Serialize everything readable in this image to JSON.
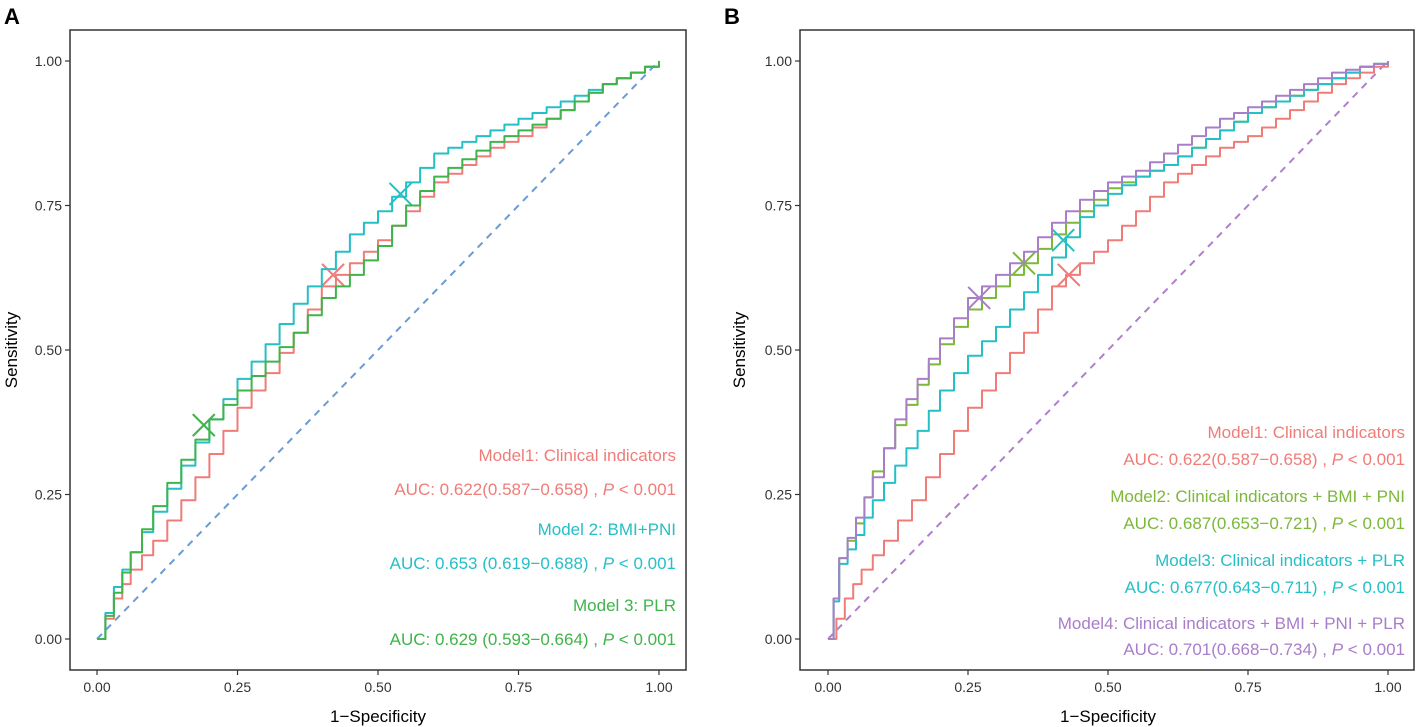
{
  "chart_data": [
    {
      "type": "line",
      "panel": "A",
      "xlabel": "1−Specificity",
      "ylabel": "Sensitivity",
      "xlim": [
        0,
        1
      ],
      "ylim": [
        0,
        1
      ],
      "xticks": [
        "0.00",
        "0.25",
        "0.50",
        "0.75",
        "1.00"
      ],
      "yticks": [
        "0.00",
        "0.25",
        "0.50",
        "0.75",
        "1.00"
      ],
      "reference_color": "#6a9bd6",
      "series": [
        {
          "name": "Model1: Clinical indicators",
          "auc": "AUC:  0.622(0.587−0.658) ,",
          "p": "< 0.001",
          "color": "#f07c78",
          "cutoff": [
            0.42,
            0.63
          ],
          "x": [
            0,
            0.03,
            0.06,
            0.1,
            0.15,
            0.2,
            0.25,
            0.3,
            0.35,
            0.4,
            0.45,
            0.5,
            0.55,
            0.6,
            0.65,
            0.7,
            0.75,
            0.8,
            0.85,
            0.9,
            0.95,
            1
          ],
          "y": [
            0,
            0.07,
            0.12,
            0.17,
            0.24,
            0.32,
            0.4,
            0.46,
            0.53,
            0.61,
            0.65,
            0.69,
            0.74,
            0.79,
            0.82,
            0.85,
            0.87,
            0.9,
            0.93,
            0.96,
            0.98,
            1
          ]
        },
        {
          "name": "Model 2: BMI+PNI",
          "auc": "AUC:  0.653 (0.619−0.688) ,",
          "p": "< 0.001",
          "color": "#25bfc6",
          "cutoff": [
            0.54,
            0.77
          ],
          "x": [
            0,
            0.03,
            0.06,
            0.1,
            0.15,
            0.2,
            0.25,
            0.3,
            0.35,
            0.4,
            0.45,
            0.5,
            0.55,
            0.6,
            0.65,
            0.7,
            0.75,
            0.8,
            0.85,
            0.9,
            0.95,
            1
          ],
          "y": [
            0,
            0.09,
            0.15,
            0.22,
            0.3,
            0.38,
            0.45,
            0.51,
            0.58,
            0.64,
            0.7,
            0.74,
            0.79,
            0.84,
            0.86,
            0.88,
            0.9,
            0.92,
            0.94,
            0.96,
            0.98,
            1
          ]
        },
        {
          "name": "Model 3: PLR",
          "auc": "AUC:  0.629 (0.593−0.664) ,",
          "p": "< 0.001",
          "color": "#3fb44a",
          "cutoff": [
            0.19,
            0.37
          ],
          "x": [
            0,
            0.03,
            0.06,
            0.1,
            0.15,
            0.2,
            0.25,
            0.3,
            0.35,
            0.4,
            0.45,
            0.5,
            0.55,
            0.6,
            0.65,
            0.7,
            0.75,
            0.8,
            0.85,
            0.9,
            0.95,
            1
          ],
          "y": [
            0,
            0.08,
            0.15,
            0.23,
            0.31,
            0.38,
            0.43,
            0.48,
            0.53,
            0.59,
            0.63,
            0.68,
            0.75,
            0.8,
            0.83,
            0.86,
            0.88,
            0.9,
            0.93,
            0.96,
            0.98,
            1
          ]
        }
      ]
    },
    {
      "type": "line",
      "panel": "B",
      "xlabel": "1−Specificity",
      "ylabel": "Sensitivity",
      "xlim": [
        0,
        1
      ],
      "ylim": [
        0,
        1
      ],
      "xticks": [
        "0.00",
        "0.25",
        "0.50",
        "0.75",
        "1.00"
      ],
      "yticks": [
        "0.00",
        "0.25",
        "0.50",
        "0.75",
        "1.00"
      ],
      "reference_color": "#b07fcc",
      "series": [
        {
          "name": "Model1: Clinical indicators",
          "auc": "AUC:  0.622(0.587−0.658) ,",
          "p": "< 0.001",
          "color": "#f07c78",
          "cutoff": [
            0.43,
            0.63
          ],
          "x": [
            0,
            0.03,
            0.06,
            0.1,
            0.15,
            0.2,
            0.25,
            0.3,
            0.35,
            0.4,
            0.45,
            0.5,
            0.55,
            0.6,
            0.65,
            0.7,
            0.75,
            0.8,
            0.85,
            0.9,
            0.95,
            1
          ],
          "y": [
            0,
            0.07,
            0.12,
            0.17,
            0.24,
            0.32,
            0.4,
            0.46,
            0.53,
            0.61,
            0.65,
            0.69,
            0.74,
            0.79,
            0.82,
            0.85,
            0.87,
            0.9,
            0.93,
            0.96,
            0.98,
            1
          ]
        },
        {
          "name": "Model2: Clinical indicators + BMI + PNI",
          "auc": "AUC:  0.687(0.653−0.721) ,",
          "p": "< 0.001",
          "color": "#7cb83a",
          "cutoff": [
            0.35,
            0.65
          ],
          "x": [
            0,
            0.02,
            0.05,
            0.08,
            0.12,
            0.16,
            0.2,
            0.25,
            0.3,
            0.35,
            0.4,
            0.45,
            0.5,
            0.55,
            0.6,
            0.65,
            0.7,
            0.75,
            0.8,
            0.85,
            0.9,
            0.95,
            1
          ],
          "y": [
            0,
            0.14,
            0.2,
            0.29,
            0.37,
            0.44,
            0.51,
            0.57,
            0.61,
            0.65,
            0.7,
            0.74,
            0.78,
            0.8,
            0.82,
            0.85,
            0.88,
            0.91,
            0.93,
            0.95,
            0.97,
            0.99,
            1
          ]
        },
        {
          "name": "Model3: Clinical indicators + PLR",
          "auc": "AUC:  0.677(0.643−0.711) ,",
          "p": "< 0.001",
          "color": "#25bfc6",
          "cutoff": [
            0.42,
            0.69
          ],
          "x": [
            0,
            0.02,
            0.05,
            0.08,
            0.12,
            0.16,
            0.2,
            0.25,
            0.3,
            0.35,
            0.4,
            0.45,
            0.5,
            0.55,
            0.6,
            0.65,
            0.7,
            0.75,
            0.8,
            0.85,
            0.9,
            0.95,
            1
          ],
          "y": [
            0,
            0.13,
            0.18,
            0.24,
            0.3,
            0.36,
            0.43,
            0.49,
            0.54,
            0.6,
            0.66,
            0.73,
            0.77,
            0.8,
            0.82,
            0.85,
            0.88,
            0.91,
            0.93,
            0.95,
            0.97,
            0.99,
            1
          ]
        },
        {
          "name": "Model4: Clinical indicators + BMI + PNI + PLR",
          "auc": "AUC:  0.701(0.668−0.734) ,",
          "p": "< 0.001",
          "color": "#a97ec9",
          "cutoff": [
            0.27,
            0.59
          ],
          "x": [
            0,
            0.02,
            0.05,
            0.08,
            0.12,
            0.16,
            0.2,
            0.25,
            0.3,
            0.35,
            0.4,
            0.45,
            0.5,
            0.55,
            0.6,
            0.65,
            0.7,
            0.75,
            0.8,
            0.85,
            0.9,
            0.95,
            1
          ],
          "y": [
            0,
            0.14,
            0.21,
            0.28,
            0.38,
            0.45,
            0.52,
            0.59,
            0.63,
            0.67,
            0.72,
            0.76,
            0.79,
            0.81,
            0.84,
            0.87,
            0.9,
            0.92,
            0.94,
            0.96,
            0.98,
            0.99,
            1
          ]
        }
      ]
    }
  ]
}
